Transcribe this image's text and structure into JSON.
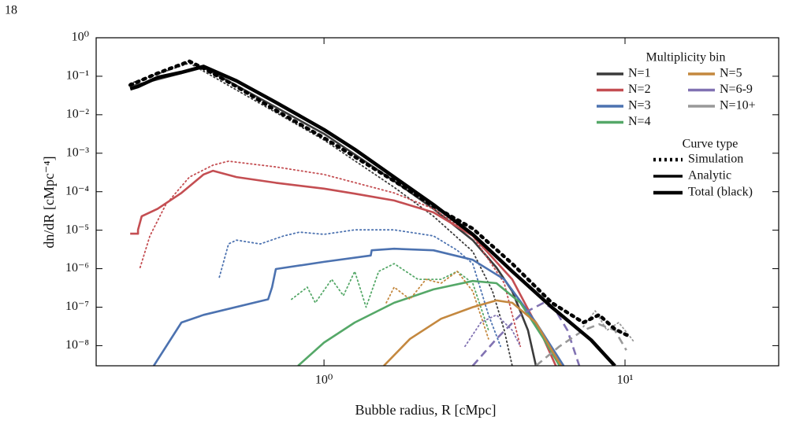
{
  "page_number": "18",
  "chart_data": {
    "type": "line",
    "xlabel": "Bubble radius, R [cMpc]",
    "ylabel": "dn/dR [cMpc⁻⁴]",
    "xscale": "log",
    "yscale": "log",
    "xlim": [
      0.175,
      32.4
    ],
    "ylim": [
      3e-09,
      1
    ],
    "xticks": [
      {
        "value": 1,
        "label": "10⁰"
      },
      {
        "value": 10,
        "label": "10¹"
      }
    ],
    "yticks": [
      {
        "value": 1,
        "label": "10⁰"
      },
      {
        "value": 0.1,
        "label": "10⁻¹"
      },
      {
        "value": 0.01,
        "label": "10⁻²"
      },
      {
        "value": 0.001,
        "label": "10⁻³"
      },
      {
        "value": 0.0001,
        "label": "10⁻⁴"
      },
      {
        "value": 1e-05,
        "label": "10⁻⁵"
      },
      {
        "value": 1e-06,
        "label": "10⁻⁶"
      },
      {
        "value": 1e-07,
        "label": "10⁻⁷"
      },
      {
        "value": 1e-08,
        "label": "10⁻⁸"
      }
    ],
    "legend": {
      "position": "upper right",
      "bins_title": "Multiplicity bin",
      "bins": [
        {
          "name": "N=1",
          "color": "#3b3b3b"
        },
        {
          "name": "N=2",
          "color": "#c44e52"
        },
        {
          "name": "N=3",
          "color": "#4c72b0"
        },
        {
          "name": "N=4",
          "color": "#55a868"
        },
        {
          "name": "N=5",
          "color": "#c4883f"
        },
        {
          "name": "N=6-9",
          "color": "#8172b2"
        },
        {
          "name": "N=10+",
          "color": "#999999"
        }
      ],
      "types_title": "Curve type",
      "types": [
        {
          "name": "Simulation",
          "style": "dotted"
        },
        {
          "name": "Analytic",
          "style": "solid"
        },
        {
          "name": "Total (black)",
          "style": "thick"
        }
      ]
    },
    "series": [
      {
        "name": "N=1",
        "style": "dotted",
        "color": "#3b3b3b",
        "x": [
          0.227,
          0.357,
          1,
          1.71,
          2.31,
          3.12,
          3.63,
          3.97,
          4.22
        ],
        "values": [
          0.065,
          0.22,
          0.0022,
          0.00013,
          2.3e-05,
          2.8e-06,
          2.6e-07,
          2.5e-08,
          3e-09
        ]
      },
      {
        "name": "N=1",
        "style": "solid",
        "color": "#3b3b3b",
        "x": [
          0.227,
          0.398,
          1,
          1.71,
          2.31,
          3.12,
          3.74,
          4.22,
          4.76,
          5.06
        ],
        "values": [
          0.054,
          0.17,
          0.0032,
          0.00019,
          3.6e-05,
          5.5e-06,
          1.07e-06,
          2.6e-07,
          2.5e-08,
          3e-09
        ]
      },
      {
        "name": "N=2",
        "style": "dotted",
        "color": "#c44e52",
        "x": [
          0.245,
          0.264,
          0.298,
          0.357,
          0.428,
          0.482,
          0.692,
          1,
          1.71,
          2.31,
          3.12,
          3.97,
          4.49
        ],
        "values": [
          1.07e-06,
          7.1e-06,
          4.6e-05,
          0.00024,
          0.00049,
          0.00062,
          0.00044,
          0.00028,
          9.3e-05,
          3.6e-05,
          7.1e-06,
          4.2e-07,
          9.6e-09
        ]
      },
      {
        "name": "N=2",
        "style": "solid",
        "color": "#c44e52",
        "x": [
          0.227,
          0.241,
          0.241,
          0.248,
          0.28,
          0.336,
          0.398,
          0.428,
          0.512,
          0.692,
          1,
          1.265,
          1.71,
          2.31,
          3.12,
          4.22,
          5.37,
          5.89
        ],
        "values": [
          8.1e-06,
          8.1e-06,
          1.02e-05,
          2.3e-05,
          3.6e-05,
          9.3e-05,
          0.00028,
          0.00035,
          0.00024,
          0.00017,
          0.00012,
          8.9e-05,
          5.9e-05,
          2.9e-05,
          7.1e-06,
          5.3e-07,
          1.5e-08,
          3e-09
        ]
      },
      {
        "name": "N=3",
        "style": "dotted",
        "color": "#4c72b0",
        "x": [
          0.449,
          0.482,
          0.512,
          0.614,
          0.735,
          0.83,
          1,
          1.265,
          1.71,
          2.31,
          2.77,
          3.12,
          3.52,
          3.86
        ],
        "values": [
          6e-07,
          4.4e-06,
          5.5e-06,
          4.4e-06,
          7.1e-06,
          8.9e-06,
          7.8e-06,
          1.02e-05,
          1.02e-05,
          7.1e-06,
          3e-06,
          1.35e-06,
          6.3e-08,
          9.6e-09
        ]
      },
      {
        "name": "N=3",
        "style": "solid",
        "color": "#4c72b0",
        "x": [
          0.272,
          0.336,
          0.398,
          0.652,
          0.672,
          0.692,
          1,
          1.43,
          1.44,
          1.71,
          2.31,
          3.12,
          3.97,
          5.06,
          6.25
        ],
        "values": [
          3e-09,
          4e-08,
          6.3e-08,
          1.6e-07,
          3.3e-07,
          9.8e-07,
          1.5e-06,
          2.2e-06,
          3e-06,
          3.3e-06,
          3e-06,
          1.7e-06,
          5.3e-07,
          4e-08,
          3e-09
        ]
      },
      {
        "name": "N=4",
        "style": "dotted",
        "color": "#55a868",
        "x": [
          0.78,
          0.88,
          0.936,
          1.06,
          1.16,
          1.265,
          1.38,
          1.52,
          1.71,
          2.05,
          2.45,
          2.77,
          3.12,
          3.52
        ],
        "values": [
          1.6e-07,
          3.3e-07,
          1.3e-07,
          5.3e-07,
          2e-07,
          8.5e-07,
          1e-07,
          8.5e-07,
          1.35e-06,
          5.3e-07,
          5.3e-07,
          8.5e-07,
          4.2e-07,
          2.5e-08
        ]
      },
      {
        "name": "N=4",
        "style": "solid",
        "color": "#55a868",
        "x": [
          0.82,
          1,
          1.265,
          1.71,
          2.31,
          3.12,
          3.74,
          4.49,
          5.37,
          6.06
        ],
        "values": [
          3e-09,
          1.2e-08,
          4e-08,
          1.3e-07,
          2.9e-07,
          4.8e-07,
          4.2e-07,
          1.3e-07,
          1.5e-08,
          3e-09
        ]
      },
      {
        "name": "N=5",
        "style": "dotted",
        "color": "#c4883f",
        "x": [
          1.61,
          1.71,
          1.93,
          2.18,
          2.45,
          2.77,
          3.12,
          3.52
        ],
        "values": [
          1.3e-07,
          3.3e-07,
          1.6e-07,
          5.3e-07,
          4.2e-07,
          8.5e-07,
          2.6e-07,
          1.5e-08
        ]
      },
      {
        "name": "N=5",
        "style": "solid",
        "color": "#c4883f",
        "x": [
          1.58,
          1.93,
          2.45,
          3.12,
          3.74,
          4.22,
          5.06,
          5.71,
          6.14
        ],
        "values": [
          3e-09,
          1.5e-08,
          5e-08,
          1e-07,
          1.5e-07,
          1.3e-07,
          4e-08,
          7.6e-09,
          3e-09
        ]
      },
      {
        "name": "N=6-9",
        "style": "dotted",
        "color": "#8172b2",
        "x": [
          2.94,
          3.32,
          3.74,
          4.22,
          4.49
        ],
        "values": [
          9.6e-09,
          4e-08,
          6.3e-08,
          2.5e-08,
          9.6e-09
        ]
      },
      {
        "name": "N=6-9",
        "style": "dashed",
        "color": "#8172b2",
        "x": [
          3.12,
          3.74,
          4.49,
          5.37,
          5.89,
          6.44,
          7.05
        ],
        "values": [
          3e-09,
          1.5e-08,
          6.3e-08,
          1.3e-07,
          8e-08,
          2.5e-08,
          3e-09
        ]
      },
      {
        "name": "N=10+",
        "style": "dotted",
        "color": "#999999",
        "x": [
          7.27,
          7.96,
          8.71,
          9.53,
          10.4,
          10.75
        ],
        "values": [
          3.1e-08,
          8e-08,
          2.5e-08,
          4e-08,
          1.7e-08,
          1.2e-08
        ]
      },
      {
        "name": "N=10+",
        "style": "dashed",
        "color": "#999999",
        "x": [
          5.06,
          6.06,
          7.27,
          8.2,
          9.25,
          10.1
        ],
        "values": [
          3e-09,
          9.6e-09,
          2.5e-08,
          3.6e-08,
          2.5e-08,
          7.6e-09
        ]
      },
      {
        "name": "Total (black)",
        "style": "dotted",
        "total": true,
        "color": "#000000",
        "x": [
          0.227,
          0.28,
          0.357,
          0.398,
          0.512,
          0.692,
          1,
          1.71,
          2.31,
          3.12,
          4.22,
          5.71,
          7.27,
          8.2,
          9.25,
          10.4
        ],
        "values": [
          0.059,
          0.12,
          0.245,
          0.16,
          0.054,
          0.013,
          0.0025,
          0.00019,
          4.2e-05,
          1.1e-05,
          1.35e-06,
          1.3e-07,
          4e-08,
          6.3e-08,
          2.7e-08,
          1.7e-08
        ]
      },
      {
        "name": "Total (black)",
        "style": "solid",
        "total": true,
        "color": "#000000",
        "x": [
          0.227,
          0.241,
          0.28,
          0.336,
          0.398,
          0.512,
          0.692,
          1,
          1.265,
          1.71,
          2.31,
          3.12,
          4.22,
          5.71,
          7.72,
          9.25
        ],
        "values": [
          0.047,
          0.054,
          0.093,
          0.126,
          0.18,
          0.076,
          0.021,
          0.0041,
          0.00126,
          0.00024,
          4.6e-05,
          7.8e-06,
          8.5e-07,
          1e-07,
          1.4e-08,
          3e-09
        ]
      }
    ]
  }
}
